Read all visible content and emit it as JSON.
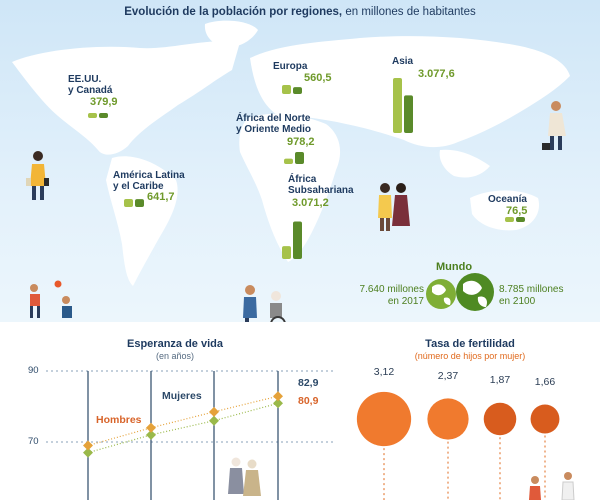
{
  "map": {
    "title_bold": "Evolución de la población por regiones,",
    "title_rest": " en millones de habitantes",
    "regions": [
      {
        "name": "EE.UU.\ny Canadá",
        "value": "379,9"
      },
      {
        "name": "Europa",
        "value": "560,5"
      },
      {
        "name": "Asia",
        "value": "3.077,6"
      },
      {
        "name": "África del Norte\ny Oriente Medio",
        "value": "978,2"
      },
      {
        "name": "América Latina\ny el Caribe",
        "value": "641,7"
      },
      {
        "name": "África\nSubsahariana",
        "value": "3.071,2"
      },
      {
        "name": "Oceanía",
        "value": "76,5"
      }
    ],
    "world": {
      "title": "Mundo",
      "left": "7.640 millones\nen 2017",
      "right": "8.785 millones\nen 2100"
    }
  },
  "life": {
    "title": "Esperanza de vida",
    "subtitle": "(en años)",
    "ticks": [
      "90",
      "70"
    ],
    "men_label": "Hombres",
    "women_label": "Mujeres",
    "men_value": "80,9",
    "women_value": "82,9"
  },
  "fertility": {
    "title": "Tasa de fertilidad",
    "subtitle": "(número de hijos por mujer)",
    "values": [
      "3,12",
      "2,37",
      "1,87",
      "1,66"
    ]
  },
  "colors": {
    "bar_light": "#a6c24a",
    "bar_dark": "#5a8a2a",
    "women": "#e5a23a",
    "men": "#9ab94a",
    "circle": "#f07a2e",
    "circle_dark": "#d85c1e",
    "land": "#ffffff"
  },
  "chart_data": [
    {
      "type": "bar",
      "title": "Evolución de la población por regiones, en millones de habitantes",
      "categories": [
        "EE.UU. y Canadá",
        "Europa",
        "Asia",
        "África del Norte y Oriente Medio",
        "América Latina y el Caribe",
        "África Subsahariana",
        "Oceanía"
      ],
      "series": [
        {
          "values": [
            360,
            740,
            4500,
            440,
            650,
            1050,
            40
          ]
        },
        {
          "values": [
            379.9,
            560.5,
            3077.6,
            978.2,
            641.7,
            3071.2,
            76.5
          ]
        }
      ]
    },
    {
      "type": "line",
      "title": "Esperanza de vida",
      "ylabel": "(en años)",
      "ylim": [
        60,
        92
      ],
      "yticks": [
        70,
        90
      ],
      "x": [
        0,
        1,
        2,
        3
      ],
      "series": [
        {
          "name": "Hombres",
          "values": [
            67,
            72,
            76,
            80.9
          ]
        },
        {
          "name": "Mujeres",
          "values": [
            69,
            74,
            78.5,
            82.9
          ]
        }
      ]
    },
    {
      "type": "bar",
      "title": "Tasa de fertilidad",
      "subtitle": "(número de hijos por mujer)",
      "values": [
        3.12,
        2.37,
        1.87,
        1.66
      ]
    }
  ]
}
